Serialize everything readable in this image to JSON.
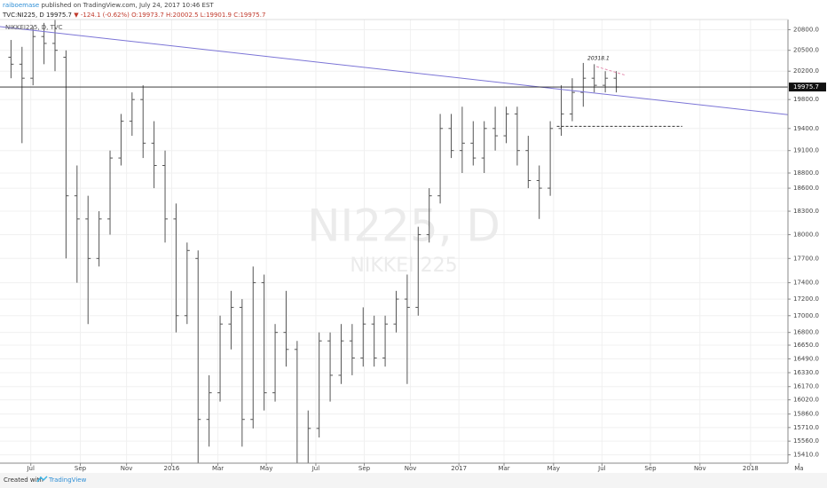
{
  "header": {
    "author": "raiboemase",
    "published": "published on TradingView.com, July 24, 2017 10:46 EST",
    "symbol": "TVC:NI225, D",
    "change": "▼ -124.1 (-0.62%)",
    "ohlc": "O:19973.7 H:20002.5 L:19901.9 C:19975.7"
  },
  "footer": {
    "created": "Created with",
    "brand": "TradingView"
  },
  "chart_data": {
    "type": "ohlc",
    "legend": "NIKKEI225, D, TVC",
    "watermark": [
      "NI225, D",
      "NIKKEI 225"
    ],
    "color": "#555555",
    "ylog": true,
    "grid": true,
    "last_price": 19975.7,
    "peak_label": "20318.1",
    "x": [
      1,
      2,
      3,
      4,
      5,
      6,
      7,
      8,
      9,
      10,
      11,
      12,
      13,
      14,
      15,
      16,
      17,
      18,
      19,
      20,
      21,
      22,
      23,
      24,
      25,
      26,
      27,
      28,
      29,
      30,
      31,
      32,
      33,
      34,
      35,
      36,
      37,
      38,
      39,
      40,
      41,
      42,
      43,
      44,
      45,
      46,
      47,
      48,
      49,
      50,
      51,
      52,
      53,
      54,
      55,
      56
    ],
    "open": [
      20400,
      20300,
      20100,
      20700,
      20600,
      20400,
      18500,
      18200,
      17700,
      18200,
      19000,
      19500,
      19800,
      19200,
      18900,
      18200,
      17000,
      17700,
      15800,
      16100,
      16900,
      17100,
      15800,
      17400,
      16100,
      16800,
      16600,
      15300,
      15700,
      16700,
      16300,
      16700,
      16500,
      16900,
      16500,
      16900,
      17200,
      17100,
      18000,
      18500,
      19400,
      19100,
      19200,
      19000,
      19400,
      19300,
      19600,
      19100,
      18700,
      18600,
      19400,
      19600,
      19900,
      20100,
      20000,
      20100
    ],
    "high": [
      20650,
      20550,
      20850,
      20900,
      20950,
      20500,
      18900,
      18500,
      18300,
      19100,
      19600,
      19900,
      20000,
      19500,
      19100,
      18400,
      17900,
      17800,
      16300,
      17000,
      17300,
      17200,
      17600,
      17500,
      16900,
      17300,
      16700,
      15900,
      16800,
      16800,
      16900,
      16900,
      17100,
      17000,
      17000,
      17300,
      17500,
      18100,
      18600,
      19600,
      19600,
      19700,
      19500,
      19500,
      19700,
      19700,
      19700,
      19300,
      18900,
      19500,
      20000,
      20100,
      20318.1,
      20300,
      20200,
      20200
    ],
    "low": [
      20100,
      19200,
      20000,
      20300,
      20200,
      17700,
      17400,
      16900,
      17600,
      18000,
      18900,
      19300,
      19000,
      18600,
      17900,
      16800,
      16900,
      14900,
      15500,
      16000,
      16600,
      15500,
      15700,
      15900,
      16000,
      16400,
      14900,
      14900,
      15600,
      16000,
      16200,
      16300,
      16400,
      16400,
      16400,
      16800,
      16200,
      17000,
      17900,
      18400,
      19000,
      18800,
      18900,
      18800,
      19100,
      19200,
      18900,
      18600,
      18200,
      18500,
      19300,
      19500,
      19700,
      19900,
      19900,
      19900
    ],
    "close": [
      20300,
      20100,
      20700,
      20600,
      20500,
      18500,
      18200,
      17700,
      18200,
      19000,
      19500,
      19800,
      19200,
      18900,
      18200,
      17000,
      17800,
      15800,
      16100,
      16900,
      17100,
      15800,
      17400,
      16100,
      16800,
      16600,
      15300,
      15700,
      16700,
      16300,
      16700,
      16500,
      16900,
      16500,
      16900,
      17200,
      17100,
      18000,
      18500,
      19400,
      19100,
      19200,
      19000,
      19400,
      19300,
      19600,
      19100,
      18700,
      18600,
      19400,
      19600,
      19900,
      20100,
      20000,
      20100,
      19975.7
    ],
    "xlim": [
      0,
      71.6
    ],
    "ylim": [
      15320,
      20950
    ],
    "xticks": [
      {
        "value": 2.8,
        "label": "Jul"
      },
      {
        "value": 7.3,
        "label": "Sep"
      },
      {
        "value": 11.5,
        "label": "Nov"
      },
      {
        "value": 15.6,
        "label": "2016"
      },
      {
        "value": 19.8,
        "label": "Mar"
      },
      {
        "value": 24.2,
        "label": "May"
      },
      {
        "value": 28.7,
        "label": "Jul"
      },
      {
        "value": 33.1,
        "label": "Sep"
      },
      {
        "value": 37.3,
        "label": "Nov"
      },
      {
        "value": 41.7,
        "label": "2017"
      },
      {
        "value": 45.8,
        "label": "Mar"
      },
      {
        "value": 50.3,
        "label": "May"
      },
      {
        "value": 54.7,
        "label": "Jul"
      },
      {
        "value": 59.1,
        "label": "Sep"
      },
      {
        "value": 63.6,
        "label": "Nov"
      },
      {
        "value": 68.2,
        "label": "2018"
      },
      {
        "value": 72.6,
        "label": "Ma"
      }
    ],
    "yticks": [
      {
        "value": 20800,
        "label": "20800.0"
      },
      {
        "value": 20500,
        "label": "20500.0"
      },
      {
        "value": 20200,
        "label": "20200.0"
      },
      {
        "value": 19800,
        "label": "19800.0"
      },
      {
        "value": 19400,
        "label": "19400.0"
      },
      {
        "value": 19100,
        "label": "19100.0"
      },
      {
        "value": 18800,
        "label": "18800.0"
      },
      {
        "value": 18600,
        "label": "18600.0"
      },
      {
        "value": 18300,
        "label": "18300.0"
      },
      {
        "value": 18000,
        "label": "18000.0"
      },
      {
        "value": 17700,
        "label": "17700.0"
      },
      {
        "value": 17400,
        "label": "17400.0"
      },
      {
        "value": 17200,
        "label": "17200.0"
      },
      {
        "value": 17000,
        "label": "17000.0"
      },
      {
        "value": 16800,
        "label": "16800.0"
      },
      {
        "value": 16650,
        "label": "16650.0"
      },
      {
        "value": 16490,
        "label": "16490.0"
      },
      {
        "value": 16330,
        "label": "16330.0"
      },
      {
        "value": 16170,
        "label": "16170.0"
      },
      {
        "value": 16020,
        "label": "16020.0"
      },
      {
        "value": 15860,
        "label": "15860.0"
      },
      {
        "value": 15710,
        "label": "15710.0"
      },
      {
        "value": 15560,
        "label": "15560.0"
      },
      {
        "value": 15410,
        "label": "15410.0"
      }
    ],
    "trendline": {
      "x": [
        0,
        71.6
      ],
      "y": [
        20845,
        19590
      ],
      "color": "#7b74d6"
    },
    "support": {
      "x": [
        50.6,
        62
      ],
      "y": [
        19430,
        19430
      ],
      "color": "#333333"
    },
    "minor_line": {
      "x": [
        54.2,
        56.9
      ],
      "y": [
        20266,
        20140
      ],
      "color": "#e58fb0"
    }
  }
}
